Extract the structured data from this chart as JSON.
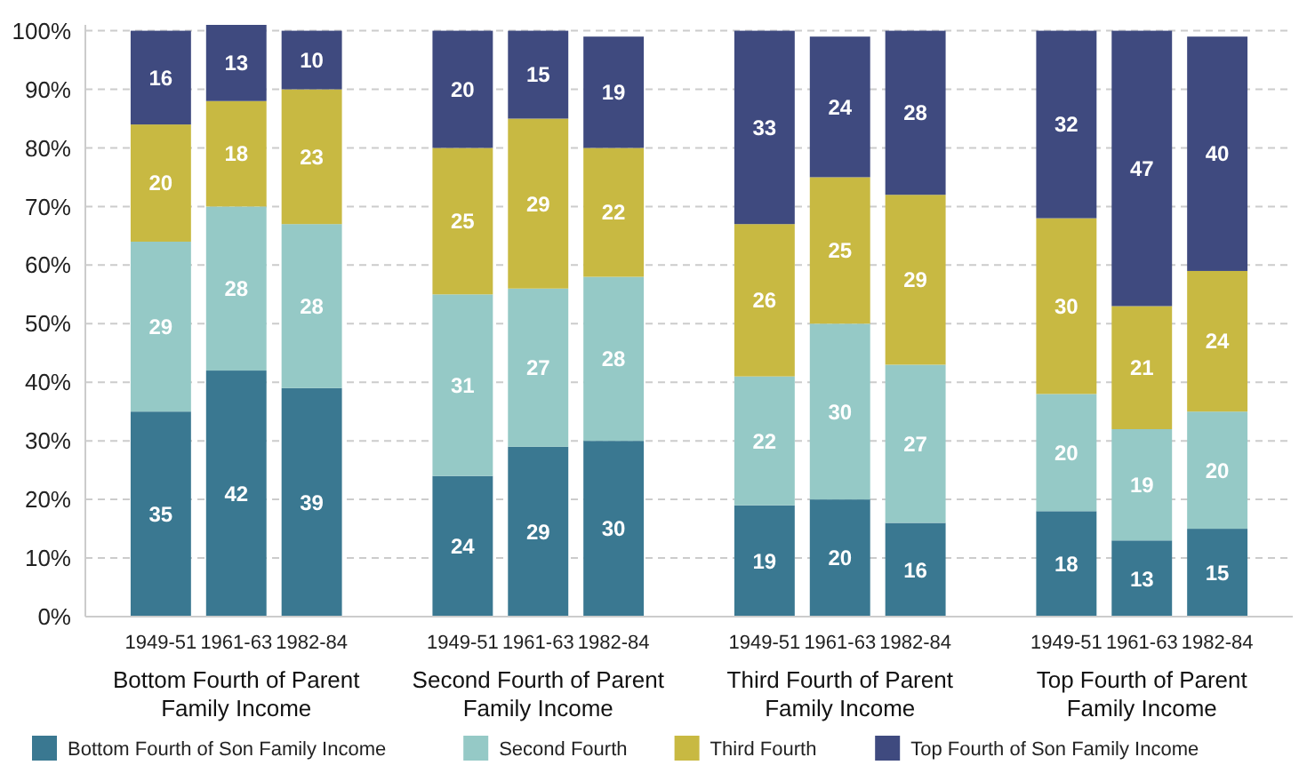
{
  "chart_data": {
    "type": "bar",
    "stacked": true,
    "data_labels": true,
    "grid": "y",
    "legend": "bottom",
    "categories": [
      "1949-51",
      "1961-63",
      "1982-84",
      "1949-51",
      "1961-63",
      "1982-84",
      "1949-51",
      "1961-63",
      "1982-84",
      "1949-51",
      "1961-63",
      "1982-84"
    ],
    "annotations": [
      "Bottom Fourth of Parent Family Income",
      "Second Fourth of Parent Family Income",
      "Third Fourth of Parent Family Income",
      "Top Fourth of Parent Family Income"
    ],
    "ylim": [
      0,
      101
    ],
    "yticks": [
      {
        "value": 0,
        "label": "0%"
      },
      {
        "value": 10,
        "label": "10%"
      },
      {
        "value": 20,
        "label": "20%"
      },
      {
        "value": 30,
        "label": "30%"
      },
      {
        "value": 40,
        "label": "40%"
      },
      {
        "value": 50,
        "label": "50%"
      },
      {
        "value": 60,
        "label": "60%"
      },
      {
        "value": 70,
        "label": "70%"
      },
      {
        "value": 80,
        "label": "80%"
      },
      {
        "value": 90,
        "label": "90%"
      },
      {
        "value": 100,
        "label": "100%"
      }
    ],
    "series": [
      {
        "name": "Bottom Fourth of Son Family Income",
        "color": "#3a7891",
        "values": [
          35,
          42,
          39,
          24,
          29,
          30,
          19,
          20,
          16,
          18,
          13,
          15
        ]
      },
      {
        "name": "Second Fourth",
        "color": "#95c9c6",
        "values": [
          29,
          28,
          28,
          31,
          27,
          28,
          22,
          30,
          27,
          20,
          19,
          20
        ]
      },
      {
        "name": "Third Fourth",
        "color": "#c8b942",
        "values": [
          20,
          18,
          23,
          25,
          29,
          22,
          26,
          25,
          29,
          30,
          21,
          24
        ]
      },
      {
        "name": "Top Fourth of Son Family Income",
        "color": "#3f4a7f",
        "values": [
          16,
          13,
          10,
          20,
          15,
          19,
          33,
          24,
          28,
          32,
          47,
          40
        ]
      }
    ]
  }
}
